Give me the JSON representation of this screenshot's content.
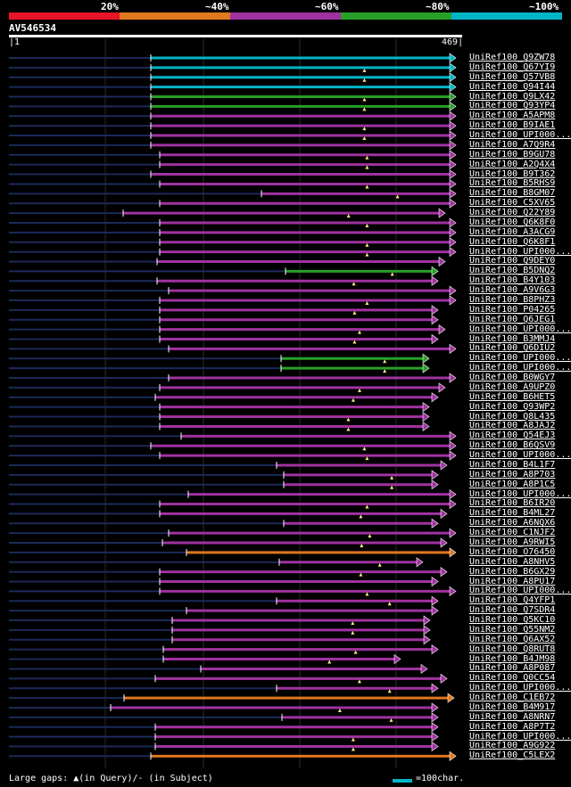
{
  "scale": {
    "segments": [
      {
        "color": "#e8142a"
      },
      {
        "color": "#e0781e"
      },
      {
        "color": "#a032a0"
      },
      {
        "color": "#28a028"
      },
      {
        "color": "#00b4c8"
      }
    ],
    "labels": [
      "20%",
      "~40%",
      "~60%",
      "~80%",
      "~100%"
    ]
  },
  "query": {
    "id": "AV546534",
    "start": "1",
    "end": "469"
  },
  "hits": [
    {
      "name": "UniRef100_Q9ZW78",
      "color": "#00b4c8"
    },
    {
      "name": "UniRef100_Q67YI9",
      "color": "#00b4c8"
    },
    {
      "name": "UniRef100_Q57VB8",
      "color": "#00b4c8"
    },
    {
      "name": "UniRef100_Q94I44",
      "color": "#00b4c8"
    },
    {
      "name": "UniRef100_Q9LX42",
      "color": "#28a028"
    },
    {
      "name": "UniRef100_Q93YP4",
      "color": "#28a028"
    },
    {
      "name": "UniRef100_A5APM8",
      "color": "#a032a0"
    },
    {
      "name": "UniRef100_B9IAE1",
      "color": "#a032a0"
    },
    {
      "name": "UniRef100_UPI000...",
      "color": "#a032a0"
    },
    {
      "name": "UniRef100_A7Q9R4",
      "color": "#a032a0"
    },
    {
      "name": "UniRef100_B9GU78",
      "color": "#a032a0"
    },
    {
      "name": "UniRef100_A2Q4X4",
      "color": "#a032a0"
    },
    {
      "name": "UniRef100_B9T362",
      "color": "#a032a0"
    },
    {
      "name": "UniRef100_B5RHS9",
      "color": "#a032a0"
    },
    {
      "name": "UniRef100_B8GM07",
      "color": "#a032a0"
    },
    {
      "name": "UniRef100_C5XV65",
      "color": "#a032a0"
    },
    {
      "name": "UniRef100_Q22Y89",
      "color": "#a032a0"
    },
    {
      "name": "UniRef100_Q6K8F0",
      "color": "#a032a0"
    },
    {
      "name": "UniRef100_A3ACG9",
      "color": "#a032a0"
    },
    {
      "name": "UniRef100_Q6K8F1",
      "color": "#a032a0"
    },
    {
      "name": "UniRef100_UPI000...",
      "color": "#a032a0"
    },
    {
      "name": "UniRef100_Q9DEY0",
      "color": "#a032a0"
    },
    {
      "name": "UniRef100_B5DNQ2",
      "color": "#28a028"
    },
    {
      "name": "UniRef100_B4Y103",
      "color": "#a032a0"
    },
    {
      "name": "UniRef100_A9V6G3",
      "color": "#a032a0"
    },
    {
      "name": "UniRef100_B8PHZ3",
      "color": "#a032a0"
    },
    {
      "name": "UniRef100_P04265",
      "color": "#a032a0"
    },
    {
      "name": "UniRef100_Q6JEG1",
      "color": "#a032a0"
    },
    {
      "name": "UniRef100_UPI000...",
      "color": "#a032a0"
    },
    {
      "name": "UniRef100_B3MMJ4",
      "color": "#a032a0"
    },
    {
      "name": "UniRef100_Q6DIU2",
      "color": "#a032a0"
    },
    {
      "name": "UniRef100_UPI000...",
      "color": "#28a028"
    },
    {
      "name": "UniRef100_UPI000...",
      "color": "#28a028"
    },
    {
      "name": "UniRef100_B0WGY7",
      "color": "#a032a0"
    },
    {
      "name": "UniRef100_A9UPZ0",
      "color": "#a032a0"
    },
    {
      "name": "UniRef100_B6HET5",
      "color": "#a032a0"
    },
    {
      "name": "UniRef100_Q93WP2",
      "color": "#a032a0"
    },
    {
      "name": "UniRef100_Q8L435",
      "color": "#a032a0"
    },
    {
      "name": "UniRef100_A8JAJ2",
      "color": "#a032a0"
    },
    {
      "name": "UniRef100_Q54EJ3",
      "color": "#a032a0"
    },
    {
      "name": "UniRef100_B6QSV9",
      "color": "#a032a0"
    },
    {
      "name": "UniRef100_UPI000...",
      "color": "#a032a0"
    },
    {
      "name": "UniRef100_B4L1F7",
      "color": "#a032a0"
    },
    {
      "name": "UniRef100_A8P703",
      "color": "#a032a0"
    },
    {
      "name": "UniRef100_A8P1C5",
      "color": "#a032a0"
    },
    {
      "name": "UniRef100_UPI000...",
      "color": "#a032a0"
    },
    {
      "name": "UniRef100_B6IR20",
      "color": "#a032a0"
    },
    {
      "name": "UniRef100_B4ML27",
      "color": "#a032a0"
    },
    {
      "name": "UniRef100_A6NQX6",
      "color": "#a032a0"
    },
    {
      "name": "UniRef100_C1NJF2",
      "color": "#a032a0"
    },
    {
      "name": "UniRef100_A9RWI5",
      "color": "#a032a0"
    },
    {
      "name": "UniRef100_O76450",
      "color": "#e0781e"
    },
    {
      "name": "UniRef100_A8NHV5",
      "color": "#a032a0"
    },
    {
      "name": "UniRef100_B6GX29",
      "color": "#a032a0"
    },
    {
      "name": "UniRef100_A8PU17",
      "color": "#a032a0"
    },
    {
      "name": "UniRef100_UPI000...",
      "color": "#a032a0"
    },
    {
      "name": "UniRef100_Q4YFP1",
      "color": "#a032a0"
    },
    {
      "name": "UniRef100_Q7SDR4",
      "color": "#a032a0"
    },
    {
      "name": "UniRef100_Q5KC10",
      "color": "#a032a0"
    },
    {
      "name": "UniRef100_Q55NM2",
      "color": "#a032a0"
    },
    {
      "name": "UniRef100_Q6AX52",
      "color": "#a032a0"
    },
    {
      "name": "UniRef100_Q8RUT8",
      "color": "#a032a0"
    },
    {
      "name": "UniRef100_B4JM98",
      "color": "#a032a0"
    },
    {
      "name": "UniRef100_A8P087",
      "color": "#a032a0"
    },
    {
      "name": "UniRef100_Q0CC54",
      "color": "#a032a0"
    },
    {
      "name": "UniRef100_UPI000...",
      "color": "#a032a0"
    },
    {
      "name": "UniRef100_C1EB72",
      "color": "#e0781e"
    },
    {
      "name": "UniRef100_B4M917",
      "color": "#a032a0"
    },
    {
      "name": "UniRef100_A8NRN7",
      "color": "#a032a0"
    },
    {
      "name": "UniRef100_A8P7T2",
      "color": "#a032a0"
    },
    {
      "name": "UniRef100_UPI000...",
      "color": "#a032a0"
    },
    {
      "name": "UniRef100_A9G922",
      "color": "#a032a0"
    },
    {
      "name": "UniRef100_C5LEX2",
      "color": "#e0781e"
    }
  ],
  "legend": {
    "gaps": "Large gaps: ▲(in Query)/- (in Subject)",
    "key": "=100char.",
    "key_color": "#00b4c8"
  }
}
